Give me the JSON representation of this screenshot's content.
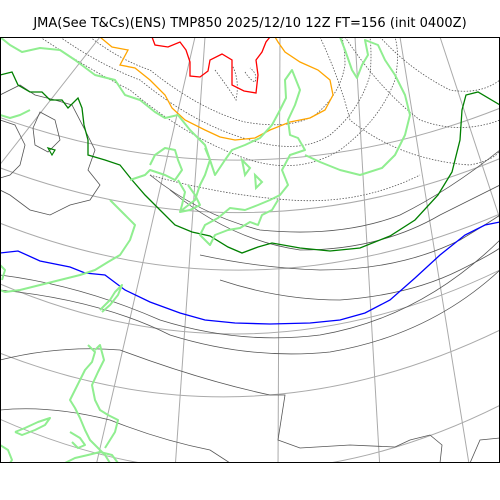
{
  "title": "JMA(See T&Cs)(ENS) TMP850 2025/12/10 12Z FT=156 (init 0400Z)",
  "colors": {
    "graticule": "#aaaaaa",
    "coastline": "#90ee90",
    "isotherm_minus30": "#ff0000",
    "isotherm_minus24": "#ffa500",
    "isotherm_minus6": "#008000",
    "isotherm_zero": "#0000ff",
    "isotherm_other": "#555555",
    "isotherm_dotted": "#555555"
  }
}
